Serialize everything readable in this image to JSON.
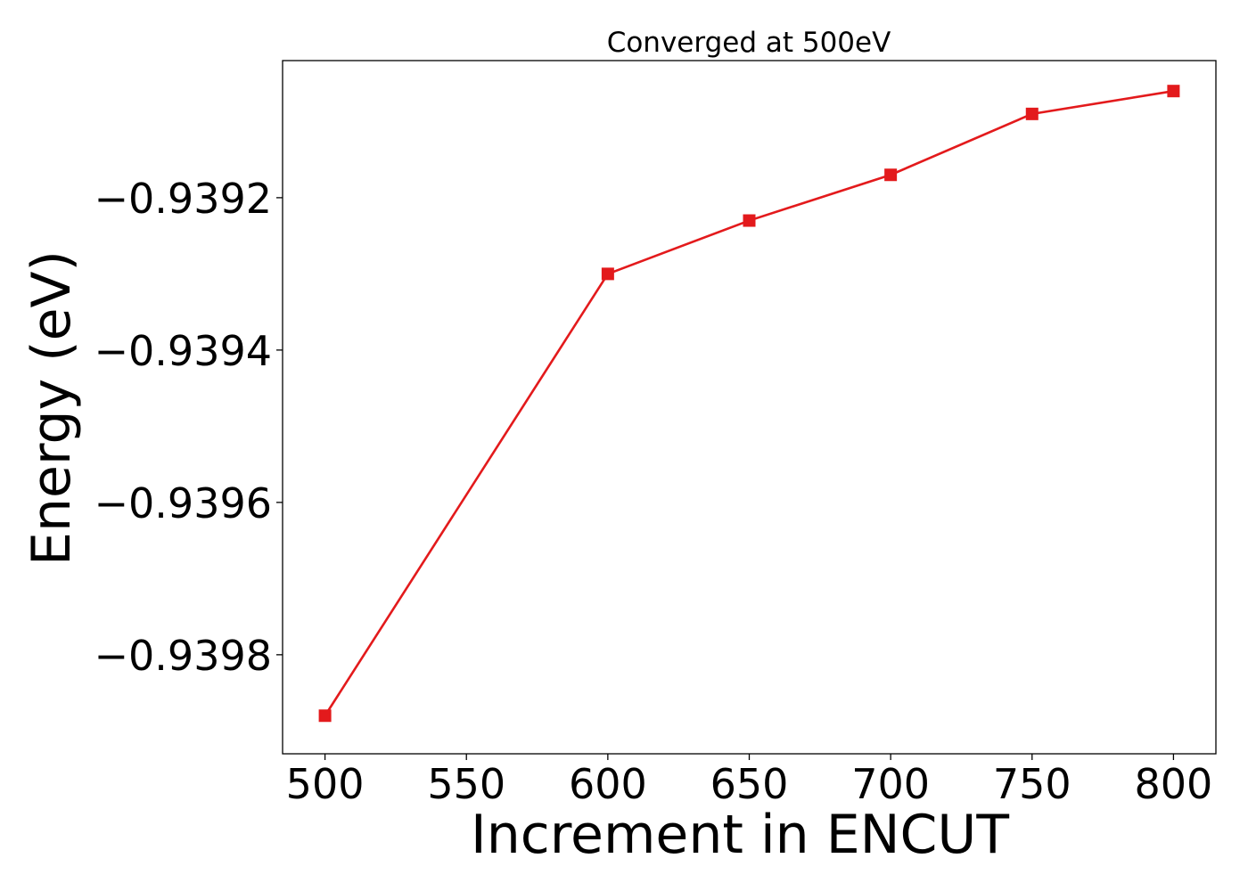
{
  "chart_data": {
    "type": "line",
    "title": "Converged at 500eV",
    "xlabel": "Increment in ENCUT",
    "ylabel": "Energy (eV)",
    "x": [
      500,
      600,
      650,
      700,
      750,
      800
    ],
    "series": [
      {
        "values": [
          -0.93988,
          -0.9393,
          -0.93923,
          -0.93917,
          -0.93909,
          -0.93906
        ],
        "color": "#e31a1c",
        "marker": "square"
      }
    ],
    "xlim": [
      485,
      815
    ],
    "ylim": [
      -0.93993,
      -0.93902
    ],
    "xticks": [
      500,
      550,
      600,
      650,
      700,
      750,
      800
    ],
    "xtick_labels": [
      "500",
      "550",
      "600",
      "650",
      "700",
      "750",
      "800"
    ],
    "yticks": [
      -0.9398,
      -0.9396,
      -0.9394,
      -0.9392
    ],
    "ytick_labels": [
      "−0.9398",
      "−0.9396",
      "−0.9394",
      "−0.9392"
    ],
    "grid": false,
    "legend": "none"
  }
}
